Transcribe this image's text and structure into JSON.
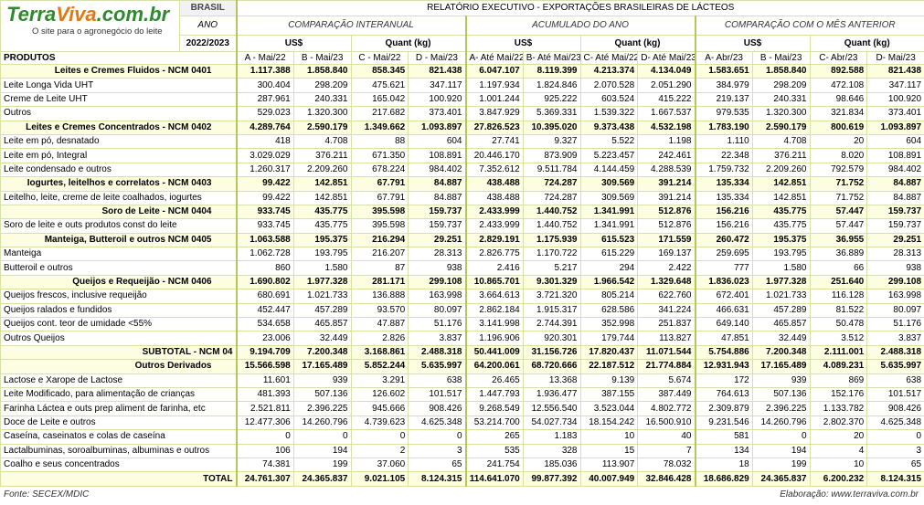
{
  "header": {
    "logo": [
      "Terra",
      "Viva",
      ".com.br"
    ],
    "tagline": "O site para o agronegócio do leite",
    "country": "BRASIL",
    "year_label": "ANO",
    "year": "2022/2023",
    "title": "RELATÓRIO EXECUTIVO - EXPORTAÇÕES BRASILEIRAS DE LÁCTEOS",
    "products_label": "PRODUTOS",
    "groups": [
      {
        "title": "COMPARAÇÃO INTERANUAL",
        "units": [
          "US$",
          "Quant (kg)"
        ],
        "columns": [
          "A - Mai/22",
          "B - Mai/23",
          "C - Mai/22",
          "D - Mai/23"
        ]
      },
      {
        "title": "ACUMULADO DO ANO",
        "units": [
          "US$",
          "Quant (kg)"
        ],
        "columns": [
          "A- Até Mai/22",
          "B- Até Mai/23",
          "C- Até Mai/22",
          "D- Até Mai/23"
        ]
      },
      {
        "title": "COMPARAÇÃO COM O MÊS ANTERIOR",
        "units": [
          "US$",
          "Quant (kg)"
        ],
        "columns": [
          "A- Abr/23",
          "B - Mai/23",
          "C- Abr/23",
          "D- Mai/23"
        ]
      }
    ]
  },
  "table": {
    "ncm_sections": [
      {
        "header": {
          "label": "Leites e Cremes Fluidos  - NCM 0401",
          "values": [
            "1.117.388",
            "1.858.840",
            "858.345",
            "821.438",
            "6.047.107",
            "8.119.399",
            "4.213.374",
            "4.134.049",
            "1.583.651",
            "1.858.840",
            "892.588",
            "821.438"
          ]
        },
        "items": [
          {
            "label": "Leite Longa Vida UHT",
            "values": [
              "300.404",
              "298.209",
              "475.621",
              "347.117",
              "1.197.934",
              "1.824.846",
              "2.070.528",
              "2.051.290",
              "384.979",
              "298.209",
              "472.108",
              "347.117"
            ]
          },
          {
            "label": "Creme de Leite UHT",
            "values": [
              "287.961",
              "240.331",
              "165.042",
              "100.920",
              "1.001.244",
              "925.222",
              "603.524",
              "415.222",
              "219.137",
              "240.331",
              "98.646",
              "100.920"
            ]
          },
          {
            "label": "Outros",
            "values": [
              "529.023",
              "1.320.300",
              "217.682",
              "373.401",
              "3.847.929",
              "5.369.331",
              "1.539.322",
              "1.667.537",
              "979.535",
              "1.320.300",
              "321.834",
              "373.401"
            ]
          }
        ]
      },
      {
        "header": {
          "label": "Leites e Cremes Concentrados  - NCM 0402",
          "values": [
            "4.289.764",
            "2.590.179",
            "1.349.662",
            "1.093.897",
            "27.826.523",
            "10.395.020",
            "9.373.438",
            "4.532.198",
            "1.783.190",
            "2.590.179",
            "800.619",
            "1.093.897"
          ]
        },
        "items": [
          {
            "label": "Leite em pó, desnatado",
            "values": [
              "418",
              "4.708",
              "88",
              "604",
              "27.741",
              "9.327",
              "5.522",
              "1.198",
              "1.110",
              "4.708",
              "20",
              "604"
            ]
          },
          {
            "label": "Leite em pó, Integral",
            "values": [
              "3.029.029",
              "376.211",
              "671.350",
              "108.891",
              "20.446.170",
              "873.909",
              "5.223.457",
              "242.461",
              "22.348",
              "376.211",
              "8.020",
              "108.891"
            ]
          },
          {
            "label": "Leite condensado e outros",
            "values": [
              "1.260.317",
              "2.209.260",
              "678.224",
              "984.402",
              "7.352.612",
              "9.511.784",
              "4.144.459",
              "4.288.539",
              "1.759.732",
              "2.209.260",
              "792.579",
              "984.402"
            ]
          }
        ]
      },
      {
        "header": {
          "label": "Iogurtes, leitelhos e correlatos  - NCM 0403",
          "values": [
            "99.422",
            "142.851",
            "67.791",
            "84.887",
            "438.488",
            "724.287",
            "309.569",
            "391.214",
            "135.334",
            "142.851",
            "71.752",
            "84.887"
          ]
        },
        "items": [
          {
            "label": "Leitelho, leite, creme de leite coalhados, iogurtes",
            "values": [
              "99.422",
              "142.851",
              "67.791",
              "84.887",
              "438.488",
              "724.287",
              "309.569",
              "391.214",
              "135.334",
              "142.851",
              "71.752",
              "84.887"
            ]
          }
        ]
      },
      {
        "header": {
          "label": "Soro de Leite  - NCM 0404",
          "values": [
            "933.745",
            "435.775",
            "395.598",
            "159.737",
            "2.433.999",
            "1.440.752",
            "1.341.991",
            "512.876",
            "156.216",
            "435.775",
            "57.447",
            "159.737"
          ]
        },
        "items": [
          {
            "label": "Soro de leite e outs produtos const do leite",
            "values": [
              "933.745",
              "435.775",
              "395.598",
              "159.737",
              "2.433.999",
              "1.440.752",
              "1.341.991",
              "512.876",
              "156.216",
              "435.775",
              "57.447",
              "159.737"
            ]
          }
        ]
      },
      {
        "header": {
          "label": "Manteiga, Butteroil e outros  NCM 0405",
          "values": [
            "1.063.588",
            "195.375",
            "216.294",
            "29.251",
            "2.829.191",
            "1.175.939",
            "615.523",
            "171.559",
            "260.472",
            "195.375",
            "36.955",
            "29.251"
          ]
        },
        "items": [
          {
            "label": "Manteiga",
            "values": [
              "1.062.728",
              "193.795",
              "216.207",
              "28.313",
              "2.826.775",
              "1.170.722",
              "615.229",
              "169.137",
              "259.695",
              "193.795",
              "36.889",
              "28.313"
            ]
          },
          {
            "label": "Butteroil e outros",
            "values": [
              "860",
              "1.580",
              "87",
              "938",
              "2.416",
              "5.217",
              "294",
              "2.422",
              "777",
              "1.580",
              "66",
              "938"
            ]
          }
        ]
      },
      {
        "header": {
          "label": "Queijos e Requeijão  - NCM 0406",
          "values": [
            "1.690.802",
            "1.977.328",
            "281.171",
            "299.108",
            "10.865.701",
            "9.301.329",
            "1.966.542",
            "1.329.648",
            "1.836.023",
            "1.977.328",
            "251.640",
            "299.108"
          ]
        },
        "items": [
          {
            "label": "Queijos frescos, inclusive requeijão",
            "values": [
              "680.691",
              "1.021.733",
              "136.888",
              "163.998",
              "3.664.613",
              "3.721.320",
              "805.214",
              "622.760",
              "672.401",
              "1.021.733",
              "116.128",
              "163.998"
            ]
          },
          {
            "label": "Queijos ralados e fundidos",
            "values": [
              "452.447",
              "457.289",
              "93.570",
              "80.097",
              "2.862.184",
              "1.915.317",
              "628.586",
              "341.224",
              "466.631",
              "457.289",
              "81.522",
              "80.097"
            ]
          },
          {
            "label": "Queijos cont. teor de umidade <55%",
            "values": [
              "534.658",
              "465.857",
              "47.887",
              "51.176",
              "3.141.998",
              "2.744.391",
              "352.998",
              "251.837",
              "649.140",
              "465.857",
              "50.478",
              "51.176"
            ]
          },
          {
            "label": "Outros Queijos",
            "values": [
              "23.006",
              "32.449",
              "2.826",
              "3.837",
              "1.196.906",
              "920.301",
              "179.744",
              "113.827",
              "47.851",
              "32.449",
              "3.512",
              "3.837"
            ]
          }
        ]
      }
    ],
    "subtotal": {
      "label": "SUBTOTAL - NCM 04",
      "values": [
        "9.194.709",
        "7.200.348",
        "3.168.861",
        "2.488.318",
        "50.441.009",
        "31.156.726",
        "17.820.437",
        "11.071.544",
        "5.754.886",
        "7.200.348",
        "2.111.001",
        "2.488.318"
      ]
    },
    "other_section": {
      "header": {
        "label": "Outros Derivados",
        "values": [
          "15.566.598",
          "17.165.489",
          "5.852.244",
          "5.635.997",
          "64.200.061",
          "68.720.666",
          "22.187.512",
          "21.774.884",
          "12.931.943",
          "17.165.489",
          "4.089.231",
          "5.635.997"
        ]
      },
      "items": [
        {
          "label": "Lactose e Xarope de Lactose",
          "values": [
            "11.601",
            "939",
            "3.291",
            "638",
            "26.465",
            "13.368",
            "9.139",
            "5.674",
            "172",
            "939",
            "869",
            "638"
          ]
        },
        {
          "label": "Leite Modificado, para alimentação de crianças",
          "values": [
            "481.393",
            "507.136",
            "126.602",
            "101.517",
            "1.447.793",
            "1.936.477",
            "387.155",
            "387.449",
            "764.613",
            "507.136",
            "152.176",
            "101.517"
          ]
        },
        {
          "label": "Farinha Láctea e outs prep aliment de farinha, etc",
          "values": [
            "2.521.811",
            "2.396.225",
            "945.666",
            "908.426",
            "9.268.549",
            "12.556.540",
            "3.523.044",
            "4.802.772",
            "2.309.879",
            "2.396.225",
            "1.133.782",
            "908.426"
          ]
        },
        {
          "label": "Doce de Leite e outros",
          "values": [
            "12.477.306",
            "14.260.796",
            "4.739.623",
            "4.625.348",
            "53.214.700",
            "54.027.734",
            "18.154.242",
            "16.500.910",
            "9.231.546",
            "14.260.796",
            "2.802.370",
            "4.625.348"
          ]
        },
        {
          "label": "Caseína, caseinatos e colas de caseína",
          "values": [
            "0",
            "0",
            "0",
            "0",
            "265",
            "1.183",
            "10",
            "40",
            "581",
            "0",
            "20",
            "0"
          ]
        },
        {
          "label": "Lactalbuminas, soroalbuminas, albuminas e outros",
          "values": [
            "106",
            "194",
            "2",
            "3",
            "535",
            "328",
            "15",
            "7",
            "134",
            "194",
            "4",
            "3"
          ]
        },
        {
          "label": "Coalho e seus concentrados",
          "values": [
            "74.381",
            "199",
            "37.060",
            "65",
            "241.754",
            "185.036",
            "113.907",
            "78.032",
            "18",
            "199",
            "10",
            "65"
          ]
        }
      ]
    },
    "total": {
      "label": "TOTAL",
      "values": [
        "24.761.307",
        "24.365.837",
        "9.021.105",
        "8.124.315",
        "114.641.070",
        "99.877.392",
        "40.007.949",
        "32.846.428",
        "18.686.829",
        "24.365.837",
        "6.200.232",
        "8.124.315"
      ]
    }
  },
  "footer": {
    "source": "Fonte: SECEX/MDIC",
    "credit": "Elaboração: www.terraviva.com.br"
  }
}
